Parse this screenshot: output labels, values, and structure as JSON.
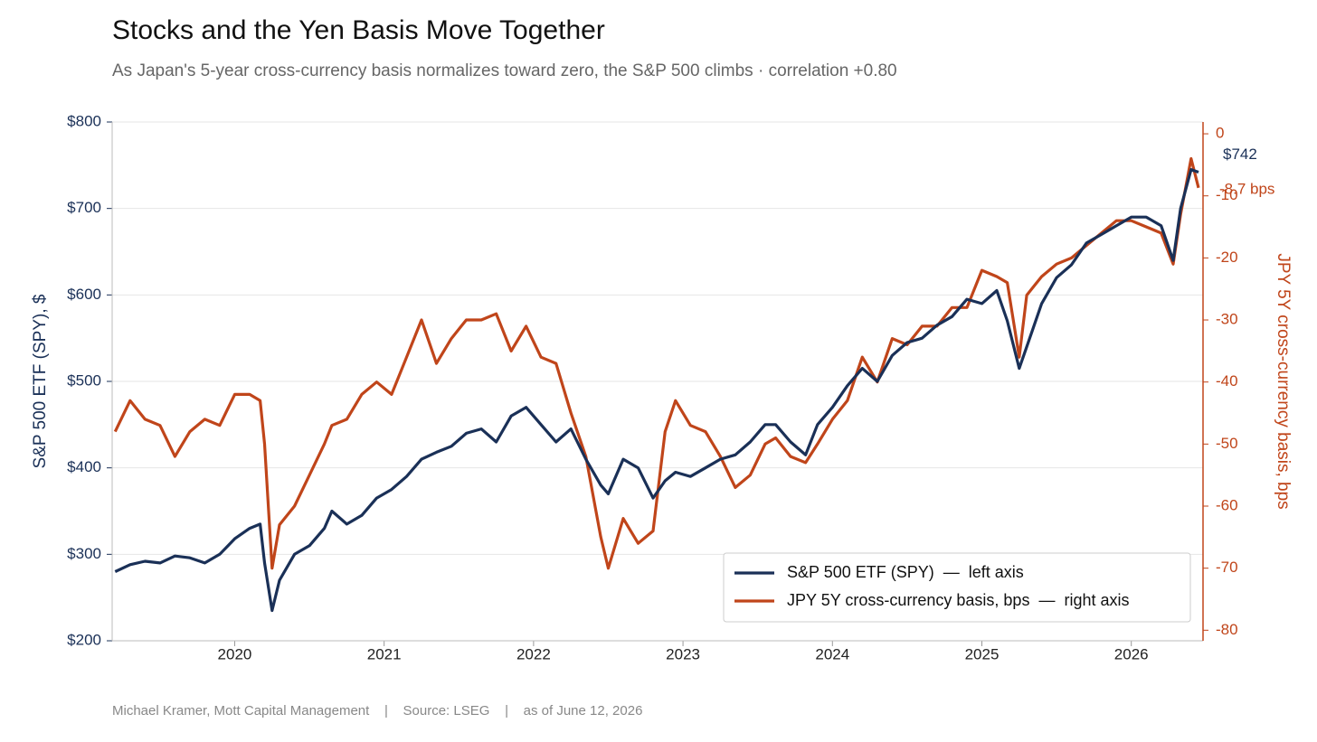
{
  "chart_data": {
    "type": "line",
    "title": "Stocks and the Yen Basis Move Together",
    "subtitle": "As Japan's 5-year cross-currency basis normalizes toward zero, the S&P 500 climbs  ·  correlation +0.80",
    "ylabel": "S&P 500 ETF (SPY), $",
    "y2label": "JPY 5Y cross-currency basis, bps",
    "footer": "Michael Kramer, Mott Capital Management    |    Source: LSEG    |    as of June 12, 2026",
    "annotations": [
      "$742",
      "-8.7 bps"
    ],
    "legend": "lower right",
    "grid": true,
    "xlim": [
      2019.18,
      2026.48
    ],
    "xticks": [
      2020,
      2021,
      2022,
      2023,
      2024,
      2025,
      2026
    ],
    "ylim": [
      200,
      800
    ],
    "yticks": [
      {
        "value": 200,
        "label": "$200"
      },
      {
        "value": 300,
        "label": "$300"
      },
      {
        "value": 400,
        "label": "$400"
      },
      {
        "value": 500,
        "label": "$500"
      },
      {
        "value": 600,
        "label": "$600"
      },
      {
        "value": 700,
        "label": "$700"
      },
      {
        "value": 800,
        "label": "$800"
      }
    ],
    "y2lim": [
      -81.7,
      1.9
    ],
    "y2ticks": [
      -80,
      -70,
      -60,
      -50,
      -40,
      -30,
      -20,
      -10,
      0
    ],
    "x": [
      2019.2,
      2019.3,
      2019.4,
      2019.5,
      2019.6,
      2019.7,
      2019.8,
      2019.9,
      2020.0,
      2020.1,
      2020.17,
      2020.2,
      2020.25,
      2020.3,
      2020.4,
      2020.5,
      2020.6,
      2020.65,
      2020.75,
      2020.85,
      2020.95,
      2021.05,
      2021.15,
      2021.25,
      2021.35,
      2021.45,
      2021.55,
      2021.65,
      2021.75,
      2021.85,
      2021.95,
      2022.05,
      2022.15,
      2022.25,
      2022.35,
      2022.45,
      2022.5,
      2022.6,
      2022.7,
      2022.8,
      2022.88,
      2022.95,
      2023.05,
      2023.15,
      2023.25,
      2023.35,
      2023.45,
      2023.55,
      2023.62,
      2023.72,
      2023.82,
      2023.9,
      2024.0,
      2024.1,
      2024.2,
      2024.3,
      2024.4,
      2024.5,
      2024.6,
      2024.7,
      2024.8,
      2024.9,
      2025.0,
      2025.1,
      2025.17,
      2025.25,
      2025.3,
      2025.4,
      2025.5,
      2025.6,
      2025.7,
      2025.8,
      2025.9,
      2026.0,
      2026.1,
      2026.2,
      2026.28,
      2026.33,
      2026.4,
      2026.45
    ],
    "series": [
      {
        "name": "S&P 500 ETF (SPY)  —  left axis",
        "color": "#1a3057",
        "axis": "y",
        "values": [
          280,
          288,
          292,
          290,
          298,
          296,
          290,
          300,
          318,
          330,
          335,
          290,
          235,
          270,
          300,
          310,
          330,
          350,
          335,
          345,
          365,
          375,
          390,
          410,
          418,
          425,
          440,
          445,
          430,
          460,
          470,
          450,
          430,
          445,
          410,
          380,
          370,
          410,
          400,
          365,
          385,
          395,
          390,
          400,
          410,
          415,
          430,
          450,
          450,
          430,
          415,
          450,
          470,
          495,
          515,
          500,
          530,
          545,
          550,
          565,
          575,
          595,
          590,
          605,
          570,
          515,
          540,
          590,
          620,
          635,
          660,
          670,
          680,
          690,
          690,
          680,
          640,
          700,
          745,
          742
        ]
      },
      {
        "name": "JPY 5Y cross-currency basis, bps  —  right axis",
        "color": "#c0451a",
        "axis": "y2",
        "values": [
          -48,
          -43,
          -46,
          -47,
          -52,
          -48,
          -46,
          -47,
          -42,
          -42,
          -43,
          -50,
          -70,
          -63,
          -60,
          -55,
          -50,
          -47,
          -46,
          -42,
          -40,
          -42,
          -36,
          -30,
          -37,
          -33,
          -30,
          -30,
          -29,
          -35,
          -31,
          -36,
          -37,
          -45,
          -52,
          -65,
          -70,
          -62,
          -66,
          -64,
          -48,
          -43,
          -47,
          -48,
          -52,
          -57,
          -55,
          -50,
          -49,
          -52,
          -53,
          -50,
          -46,
          -43,
          -36,
          -40,
          -33,
          -34,
          -31,
          -31,
          -28,
          -28,
          -22,
          -23,
          -24,
          -36,
          -26,
          -23,
          -21,
          -20,
          -18,
          -16,
          -14,
          -14,
          -15,
          -16,
          -21,
          -13,
          -4,
          -8.7
        ]
      }
    ]
  }
}
